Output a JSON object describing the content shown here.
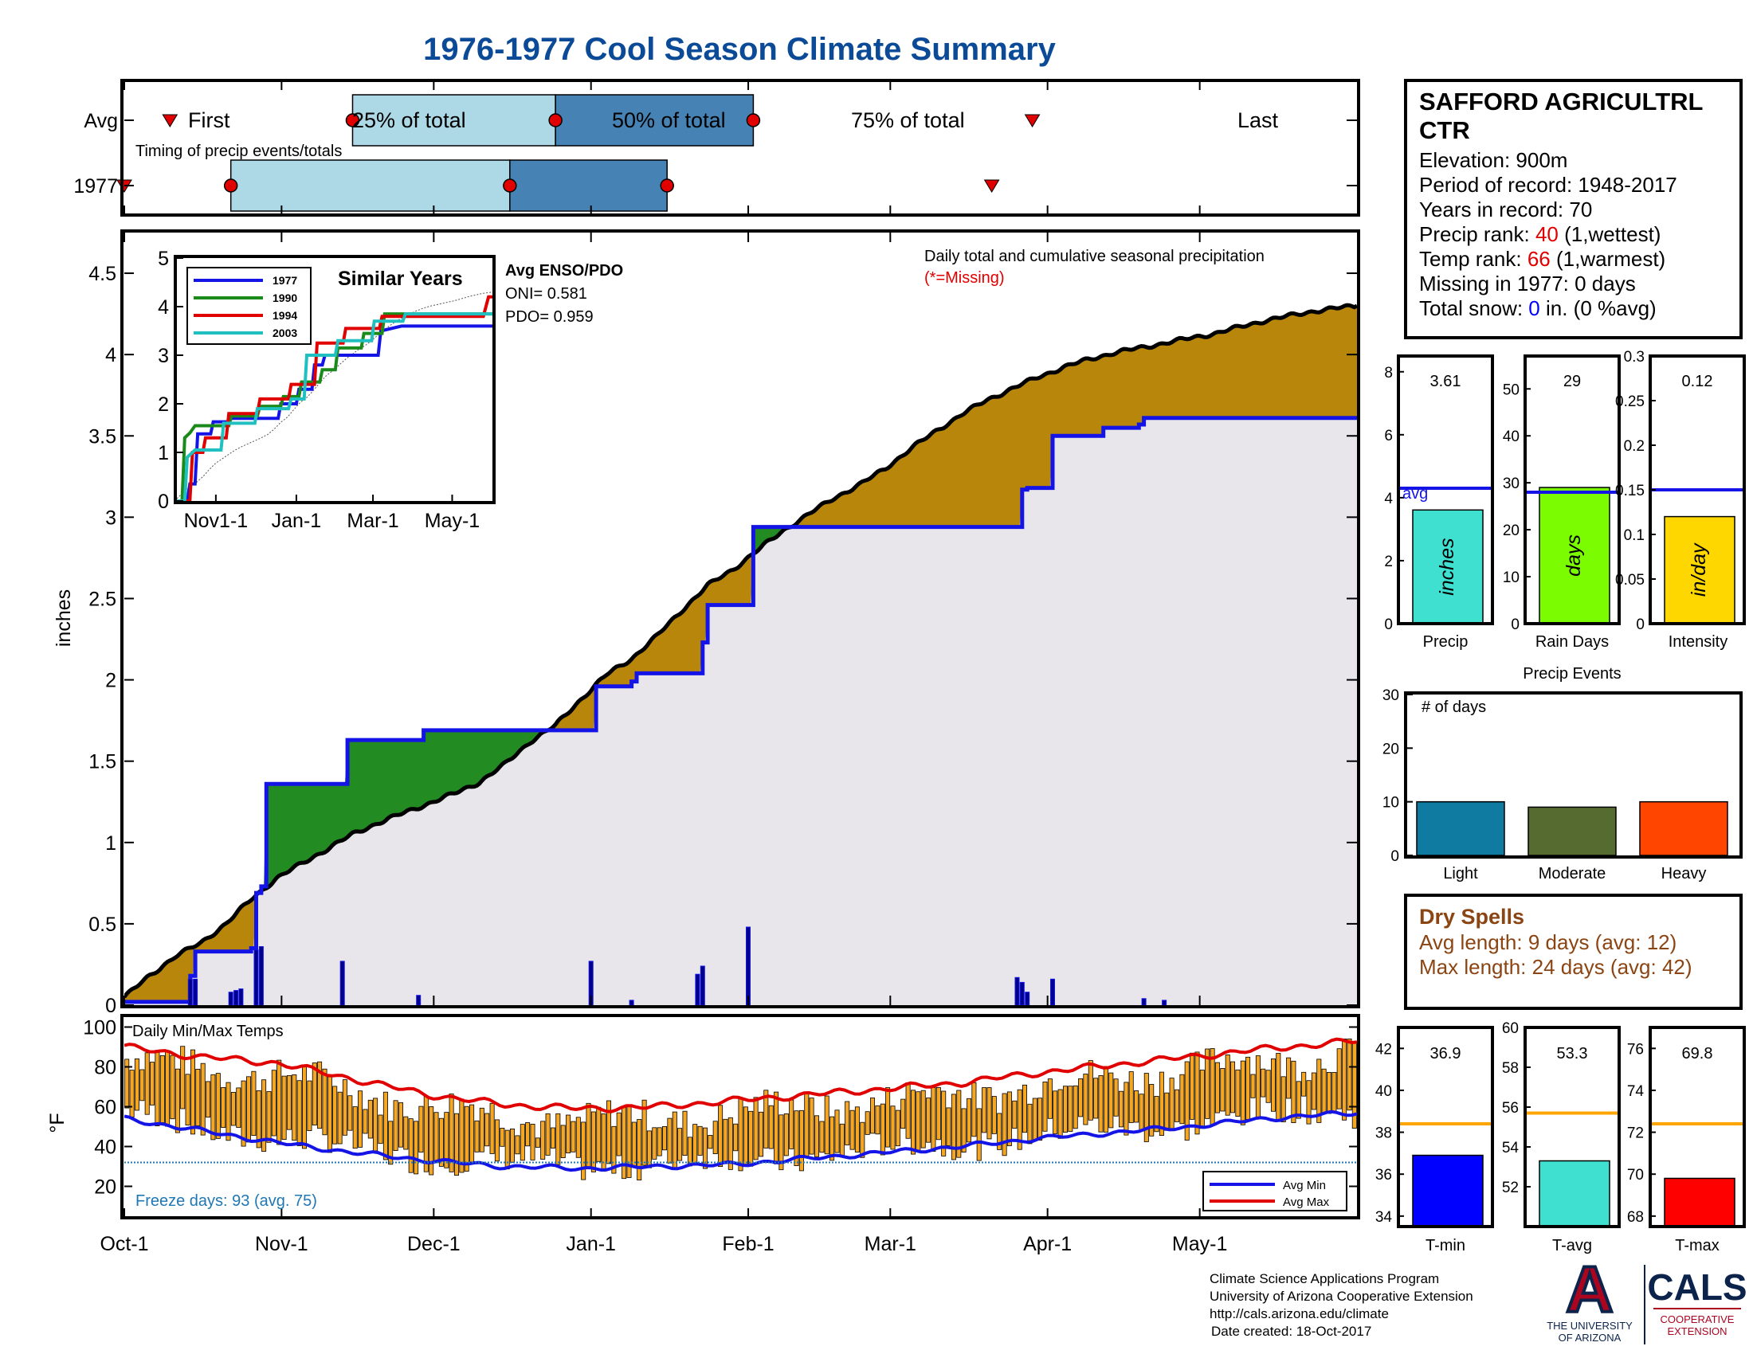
{
  "title": "1976-1977 Cool Season Climate Summary",
  "station": {
    "name_line1": "SAFFORD AGRICULTRL",
    "name_line2": "CTR",
    "elevation": "Elevation: 900m",
    "period": "Period of record: 1948-2017",
    "years": "Years in record: 70",
    "precip_rank_label": "Precip rank: ",
    "precip_rank_value": "40",
    "precip_rank_note": " (1,wettest)",
    "temp_rank_label": "Temp rank: ",
    "temp_rank_value": "66",
    "temp_rank_note": " (1,warmest)",
    "missing": "Missing in 1977: 0 days",
    "snow_label": "Total snow: ",
    "snow_value": "0",
    "snow_note": " in. (0 %avg)"
  },
  "timing": {
    "row_labels": [
      "Avg",
      "1977"
    ],
    "label_first": "First",
    "label_25": "25% of total",
    "label_50": "50% of total",
    "label_75": "75% of total",
    "label_last": "Last",
    "caption": "Timing of precip events/totals",
    "avg": {
      "first_day": 9,
      "q25_day": 45,
      "q50_day": 85,
      "q75_day": 124,
      "last_day": 179
    },
    "y1977": {
      "first_day": 0,
      "q25_day": 21,
      "q50_day": 76,
      "q75_day": 107,
      "last_day": 171
    }
  },
  "main_chart": {
    "ylabel": "inches",
    "annotation_line1": "Daily total and cumulative seasonal precipitation",
    "annotation_line2": "(*=Missing)",
    "yticks": [
      "0",
      "0.5",
      "1",
      "1.5",
      "2",
      "2.5",
      "3",
      "3.5",
      "4",
      "4.5"
    ]
  },
  "inset": {
    "title": "Similar Years",
    "yticks": [
      "0",
      "1",
      "2",
      "3",
      "4",
      "5"
    ],
    "xticks": [
      "Nov1-1",
      "Jan-1",
      "Mar-1",
      "May-1"
    ],
    "enso_title": "Avg ENSO/PDO",
    "oni": "ONI= 0.581",
    "pdo": "PDO= 0.959"
  },
  "temp_chart": {
    "title": "Daily Min/Max Temps",
    "ylabel": "°F",
    "yticks": [
      "20",
      "40",
      "60",
      "80",
      "100"
    ],
    "freeze": "Freeze days: 93 (avg. 75)",
    "legend_min": "Avg Min",
    "legend_max": "Avg Max"
  },
  "xaxis": {
    "labels": [
      "Oct-1",
      "Nov-1",
      "Dec-1",
      "Jan-1",
      "Feb-1",
      "Mar-1",
      "Apr-1",
      "May-1"
    ],
    "days": [
      0,
      31,
      61,
      92,
      123,
      151,
      182,
      212
    ]
  },
  "summary_bars": {
    "precip": {
      "label": "Precip",
      "value_text": "3.61",
      "inner": "inches",
      "yticks": [
        "0",
        "2",
        "4",
        "6",
        "8"
      ],
      "avg_label": "avg"
    },
    "raindays": {
      "label": "Rain Days",
      "value_text": "29",
      "inner": "days",
      "yticks": [
        "0",
        "10",
        "20",
        "30",
        "40",
        "50"
      ]
    },
    "intensity": {
      "label": "Intensity",
      "value_text": "0.12",
      "inner": "in/day",
      "yticks": [
        "0",
        "0.05",
        "0.1",
        "0.15",
        "0.2",
        "0.25",
        "0.3"
      ]
    }
  },
  "events": {
    "title": "Precip Events",
    "ylabel": "# of days",
    "yticks": [
      "0",
      "10",
      "20",
      "30"
    ],
    "labels": [
      "Light",
      "Moderate",
      "Heavy"
    ]
  },
  "dry_spells": {
    "title": "Dry Spells",
    "avg": "Avg length: 9 days (avg: 12)",
    "max": "Max length: 24 days (avg: 42)"
  },
  "temp_summary": {
    "tmin": {
      "label": "T-min",
      "value_text": "36.9",
      "yticks": [
        "34",
        "36",
        "38",
        "40",
        "42"
      ]
    },
    "tavg": {
      "label": "T-avg",
      "value_text": "53.3",
      "yticks": [
        "52",
        "54",
        "56",
        "58",
        "60"
      ]
    },
    "tmax": {
      "label": "T-max",
      "value_text": "69.8",
      "yticks": [
        "68",
        "70",
        "72",
        "74",
        "76"
      ]
    }
  },
  "footer": {
    "line1": "Climate Science Applications Program",
    "line2": "University of Arizona Cooperative Extension",
    "line3": "http://cals.arizona.edu/climate",
    "line4": "Date created: 18-Oct-2017",
    "ua_line1": "THE UNIVERSITY",
    "ua_line2": "OF ARIZONA",
    "ua_letter": "A",
    "cals": "CALS",
    "cals_line1": "COOPERATIVE",
    "cals_line2": "EXTENSION"
  },
  "colors": {
    "title": "#0b4a96",
    "station_text": "#000000",
    "rank": "#e00000",
    "snow": "#0000ff",
    "observed_line": "#1414e6",
    "avg_line": "#000000",
    "dry_fill": "#b8860b",
    "wet_fill": "#228b22",
    "base_fill": "#e8e6ea",
    "bar_q1": "#add8e6",
    "bar_q2": "#4682b4",
    "marker": "#e00000",
    "precip_bar": "#40e0d0",
    "rain_bar": "#7cfc00",
    "intensity_bar": "#ffd700",
    "avg_marker": "#1414e6",
    "light": "#0f7ba0",
    "moderate": "#556b2f",
    "heavy": "#ff4500",
    "dry_spell": "#8b4513",
    "temp_bar": "#f5a623",
    "tavg_line": "#ffa500",
    "tmin_bar": "#0000ff",
    "tavg_bar": "#40e0d0",
    "tmax_bar": "#ff0000",
    "freeze": "#1f77b4",
    "ua_red": "#ab0520",
    "ua_blue": "#0c234b"
  },
  "chart_data": [
    {
      "type": "area",
      "title": "Daily total and cumulative seasonal precipitation",
      "xlabel": "",
      "ylabel": "inches",
      "ylim": [
        0,
        4.75
      ],
      "xlim_days": [
        0,
        243
      ],
      "x_unit": "days since Oct-1",
      "avg_cumulative": [
        [
          0,
          0.05
        ],
        [
          5,
          0.18
        ],
        [
          10,
          0.3
        ],
        [
          15,
          0.38
        ],
        [
          20,
          0.5
        ],
        [
          25,
          0.65
        ],
        [
          30,
          0.78
        ],
        [
          35,
          0.87
        ],
        [
          40,
          0.96
        ],
        [
          45,
          1.05
        ],
        [
          50,
          1.12
        ],
        [
          55,
          1.18
        ],
        [
          60,
          1.24
        ],
        [
          65,
          1.3
        ],
        [
          70,
          1.37
        ],
        [
          75,
          1.48
        ],
        [
          80,
          1.62
        ],
        [
          85,
          1.72
        ],
        [
          90,
          1.88
        ],
        [
          95,
          2.03
        ],
        [
          100,
          2.13
        ],
        [
          105,
          2.27
        ],
        [
          110,
          2.43
        ],
        [
          115,
          2.58
        ],
        [
          120,
          2.68
        ],
        [
          125,
          2.8
        ],
        [
          130,
          2.92
        ],
        [
          135,
          3.02
        ],
        [
          140,
          3.12
        ],
        [
          145,
          3.2
        ],
        [
          150,
          3.3
        ],
        [
          155,
          3.42
        ],
        [
          160,
          3.53
        ],
        [
          165,
          3.63
        ],
        [
          170,
          3.72
        ],
        [
          175,
          3.79
        ],
        [
          180,
          3.86
        ],
        [
          185,
          3.92
        ],
        [
          190,
          3.97
        ],
        [
          195,
          4.01
        ],
        [
          200,
          4.04
        ],
        [
          205,
          4.07
        ],
        [
          210,
          4.1
        ],
        [
          215,
          4.13
        ],
        [
          220,
          4.17
        ],
        [
          225,
          4.21
        ],
        [
          230,
          4.24
        ],
        [
          235,
          4.27
        ],
        [
          243,
          4.3
        ]
      ],
      "series_1977_cumulative": [
        [
          0,
          0.02
        ],
        [
          12,
          0.02
        ],
        [
          13,
          0.18
        ],
        [
          14,
          0.33
        ],
        [
          20,
          0.33
        ],
        [
          25,
          0.35
        ],
        [
          26,
          0.69
        ],
        [
          27,
          0.73
        ],
        [
          28,
          1.36
        ],
        [
          43,
          1.36
        ],
        [
          44,
          1.63
        ],
        [
          58,
          1.63
        ],
        [
          59,
          1.69
        ],
        [
          92,
          1.69
        ],
        [
          93,
          1.96
        ],
        [
          100,
          1.99
        ],
        [
          101,
          2.04
        ],
        [
          113,
          2.04
        ],
        [
          114,
          2.23
        ],
        [
          115,
          2.46
        ],
        [
          123,
          2.46
        ],
        [
          124,
          2.94
        ],
        [
          176,
          2.94
        ],
        [
          177,
          3.17
        ],
        [
          178,
          3.18
        ],
        [
          183,
          3.5
        ],
        [
          192,
          3.5
        ],
        [
          193,
          3.55
        ],
        [
          200,
          3.57
        ],
        [
          201,
          3.61
        ],
        [
          243,
          3.61
        ]
      ],
      "daily_precip_1977": [
        [
          13,
          0.16
        ],
        [
          14,
          0.16
        ],
        [
          21,
          0.08
        ],
        [
          22,
          0.09
        ],
        [
          23,
          0.1
        ],
        [
          26,
          0.34
        ],
        [
          27,
          0.36
        ],
        [
          43,
          0.27
        ],
        [
          58,
          0.06
        ],
        [
          92,
          0.27
        ],
        [
          100,
          0.03
        ],
        [
          113,
          0.19
        ],
        [
          114,
          0.24
        ],
        [
          123,
          0.48
        ],
        [
          176,
          0.17
        ],
        [
          177,
          0.14
        ],
        [
          178,
          0.08
        ],
        [
          183,
          0.16
        ],
        [
          201,
          0.04
        ],
        [
          205,
          0.03
        ]
      ]
    },
    {
      "type": "line",
      "title": "Similar Years",
      "ylim": [
        0,
        5
      ],
      "x_unit": "days since Oct-1",
      "series": [
        {
          "name": "1977",
          "color": "#1414e6",
          "points": [
            [
              0,
              0
            ],
            [
              8,
              0
            ],
            [
              10,
              0.35
            ],
            [
              14,
              0.35
            ],
            [
              16,
              1.38
            ],
            [
              26,
              1.38
            ],
            [
              28,
              1.63
            ],
            [
              40,
              1.63
            ],
            [
              42,
              1.7
            ],
            [
              78,
              1.7
            ],
            [
              80,
              2.0
            ],
            [
              92,
              2.0
            ],
            [
              94,
              2.3
            ],
            [
              104,
              2.3
            ],
            [
              106,
              2.8
            ],
            [
              112,
              2.8
            ],
            [
              114,
              3.0
            ],
            [
              155,
              3.0
            ],
            [
              157,
              3.5
            ],
            [
              173,
              3.6
            ],
            [
              243,
              3.6
            ]
          ]
        },
        {
          "name": "1990",
          "color": "#1a8a1a",
          "points": [
            [
              0,
              0
            ],
            [
              4,
              0
            ],
            [
              6,
              1.3
            ],
            [
              10,
              1.4
            ],
            [
              14,
              1.55
            ],
            [
              40,
              1.55
            ],
            [
              42,
              1.75
            ],
            [
              62,
              1.75
            ],
            [
              64,
              1.95
            ],
            [
              80,
              1.95
            ],
            [
              82,
              2.15
            ],
            [
              94,
              2.15
            ],
            [
              96,
              2.45
            ],
            [
              110,
              2.45
            ],
            [
              112,
              2.7
            ],
            [
              122,
              2.7
            ],
            [
              124,
              3.15
            ],
            [
              142,
              3.15
            ],
            [
              144,
              3.45
            ],
            [
              158,
              3.45
            ],
            [
              160,
              3.85
            ],
            [
              243,
              3.85
            ]
          ]
        },
        {
          "name": "1994",
          "color": "#e00000",
          "points": [
            [
              0,
              0
            ],
            [
              10,
              0
            ],
            [
              12,
              1.0
            ],
            [
              20,
              1.0
            ],
            [
              22,
              1.3
            ],
            [
              38,
              1.3
            ],
            [
              40,
              1.8
            ],
            [
              62,
              1.8
            ],
            [
              64,
              2.1
            ],
            [
              86,
              2.1
            ],
            [
              88,
              2.4
            ],
            [
              106,
              2.4
            ],
            [
              108,
              3.25
            ],
            [
              128,
              3.25
            ],
            [
              130,
              3.55
            ],
            [
              156,
              3.55
            ],
            [
              158,
              3.8
            ],
            [
              236,
              3.8
            ],
            [
              240,
              4.2
            ],
            [
              243,
              4.2
            ]
          ]
        },
        {
          "name": "2003",
          "color": "#20c0c0",
          "points": [
            [
              0,
              0
            ],
            [
              6,
              0
            ],
            [
              8,
              0.9
            ],
            [
              14,
              1.05
            ],
            [
              34,
              1.05
            ],
            [
              36,
              1.6
            ],
            [
              60,
              1.6
            ],
            [
              62,
              1.9
            ],
            [
              86,
              1.9
            ],
            [
              88,
              2.1
            ],
            [
              98,
              2.1
            ],
            [
              100,
              3.0
            ],
            [
              122,
              3.0
            ],
            [
              124,
              3.3
            ],
            [
              150,
              3.3
            ],
            [
              152,
              3.7
            ],
            [
              174,
              3.7
            ],
            [
              176,
              3.85
            ],
            [
              243,
              3.85
            ]
          ]
        }
      ]
    },
    {
      "type": "bar",
      "title": "Daily Min/Max Temps",
      "ylabel": "°F",
      "ylim": [
        5,
        105
      ],
      "x_unit": "days since Oct-1",
      "avg_max": [
        [
          0,
          90
        ],
        [
          15,
          85
        ],
        [
          30,
          82
        ],
        [
          45,
          74
        ],
        [
          60,
          66
        ],
        [
          75,
          61
        ],
        [
          90,
          59
        ],
        [
          105,
          60
        ],
        [
          120,
          63
        ],
        [
          135,
          66
        ],
        [
          150,
          69
        ],
        [
          165,
          72
        ],
        [
          180,
          77
        ],
        [
          195,
          81
        ],
        [
          210,
          85
        ],
        [
          225,
          89
        ],
        [
          243,
          93
        ]
      ],
      "avg_min": [
        [
          0,
          54
        ],
        [
          15,
          48
        ],
        [
          30,
          42
        ],
        [
          45,
          37
        ],
        [
          60,
          33
        ],
        [
          75,
          30
        ],
        [
          90,
          29
        ],
        [
          105,
          30
        ],
        [
          120,
          31
        ],
        [
          135,
          34
        ],
        [
          150,
          37
        ],
        [
          165,
          40
        ],
        [
          180,
          44
        ],
        [
          195,
          47
        ],
        [
          210,
          50
        ],
        [
          225,
          54
        ],
        [
          243,
          57
        ]
      ],
      "freeze_line": 32
    },
    {
      "type": "bar",
      "title": "Summary",
      "categories": [
        "Precip",
        "Rain Days",
        "Intensity"
      ],
      "values": [
        3.61,
        29,
        0.12
      ],
      "avg": [
        4.3,
        28,
        0.15
      ],
      "ylims": [
        [
          0,
          8.5
        ],
        [
          0,
          57
        ],
        [
          0,
          0.3
        ]
      ]
    },
    {
      "type": "bar",
      "title": "Precip Events",
      "ylabel": "# of days",
      "categories": [
        "Light",
        "Moderate",
        "Heavy"
      ],
      "values": [
        10,
        9,
        10
      ],
      "ylim": [
        0,
        30
      ]
    },
    {
      "type": "bar",
      "title": "Temperature summary",
      "categories": [
        "T-min",
        "T-avg",
        "T-max"
      ],
      "values": [
        36.9,
        53.3,
        69.8
      ],
      "avg": [
        38.4,
        55.7,
        72.4
      ],
      "ylims": [
        [
          33.5,
          43
        ],
        [
          50,
          60
        ],
        [
          67.5,
          77
        ]
      ]
    }
  ]
}
